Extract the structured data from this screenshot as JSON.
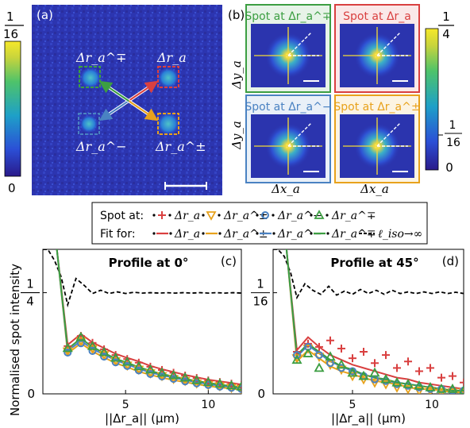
{
  "panel_a": {
    "label": "(a)",
    "colorbar": {
      "top_label": "1/16",
      "top_num": "1",
      "top_den": "16",
      "bottom_label": "0"
    },
    "spot_labels": {
      "tl": "Δr_a^∓",
      "tr": "Δr_a",
      "bl": "Δr_a^−",
      "br": "Δr_a^±"
    },
    "spot_colors": {
      "tr": "#d94040",
      "br": "#e8a21c",
      "bl": "#4a82c2",
      "tl": "#3c9e42"
    }
  },
  "panel_b": {
    "label": "(b)",
    "titles": [
      "Spot at Δr_a^∓",
      "Spot at Δr_a",
      "Spot at Δr_a^−",
      "Spot at Δr_a^±"
    ],
    "title_colors": [
      "#3c9e42",
      "#d94040",
      "#4a82c2",
      "#e8a21c"
    ],
    "ylabel": "Δy_a",
    "xlabel": "Δx_a",
    "colorbar": {
      "top_num": "1",
      "top_den": "4",
      "mid_num": "1",
      "mid_den": "16",
      "bottom_label": "0"
    }
  },
  "legend": {
    "row1_prefix": "Spot at:",
    "row2_prefix": "Fit for:",
    "entries": [
      "Δr_a",
      "Δr_a^±",
      "Δr_a^−",
      "Δr_a^∓"
    ],
    "extra": "ℓ_iso→∞"
  },
  "shared": {
    "ylabel": "Normalised spot intensity"
  },
  "chart_data": [
    {
      "type": "line",
      "panel": "(c)",
      "title": "Profile at 0°",
      "xlabel": "||Δr_a|| (μm)",
      "ylabel": "Normalised spot intensity",
      "xlim": [
        0,
        12
      ],
      "ylim": [
        0,
        0.3571
      ],
      "xticks": [
        5,
        10
      ],
      "yticks": [
        {
          "value": 0,
          "label": "0"
        },
        {
          "value": 0.25,
          "label": "1/4"
        }
      ],
      "x": [
        1.5,
        2.3,
        3.0,
        3.7,
        4.4,
        5.1,
        5.8,
        6.5,
        7.2,
        7.9,
        8.6,
        9.3,
        10.0,
        10.7,
        11.4,
        12.0
      ],
      "series": [
        {
          "name": "Δr_a",
          "color": "#d94040",
          "fit": [
            0.121,
            0.148,
            0.127,
            0.113,
            0.099,
            0.089,
            0.08,
            0.069,
            0.061,
            0.054,
            0.047,
            0.041,
            0.035,
            0.031,
            0.027,
            0.023
          ],
          "points": [
            0.118,
            0.143,
            0.126,
            0.11,
            0.096,
            0.086,
            0.077,
            0.067,
            0.059,
            0.052,
            0.045,
            0.039,
            0.033,
            0.029,
            0.025,
            0.022
          ]
        },
        {
          "name": "Δr_a^±",
          "color": "#e8a21c",
          "fit": [
            0.1,
            0.125,
            0.105,
            0.09,
            0.076,
            0.066,
            0.055,
            0.047,
            0.04,
            0.034,
            0.029,
            0.024,
            0.019,
            0.016,
            0.013,
            0.01
          ],
          "points": [
            0.105,
            0.13,
            0.111,
            0.096,
            0.081,
            0.07,
            0.06,
            0.051,
            0.044,
            0.037,
            0.032,
            0.026,
            0.022,
            0.019,
            0.015,
            0.012
          ]
        },
        {
          "name": "Δr_a^−",
          "color": "#4a82c2",
          "fit": [
            0.106,
            0.131,
            0.111,
            0.097,
            0.083,
            0.073,
            0.062,
            0.053,
            0.046,
            0.04,
            0.034,
            0.029,
            0.024,
            0.02,
            0.017,
            0.014
          ],
          "points": [
            0.102,
            0.125,
            0.106,
            0.092,
            0.078,
            0.069,
            0.058,
            0.049,
            0.043,
            0.037,
            0.031,
            0.026,
            0.022,
            0.018,
            0.015,
            0.012
          ]
        },
        {
          "name": "Δr_a^∓",
          "color": "#3c9e42",
          "fit": [
            0.111,
            0.137,
            0.116,
            0.101,
            0.087,
            0.077,
            0.066,
            0.057,
            0.049,
            0.043,
            0.037,
            0.032,
            0.027,
            0.023,
            0.019,
            0.016
          ],
          "points": [
            0.113,
            0.14,
            0.118,
            0.103,
            0.089,
            0.079,
            0.068,
            0.06,
            0.052,
            0.046,
            0.04,
            0.034,
            0.029,
            0.025,
            0.021,
            0.018
          ]
        }
      ],
      "iso": {
        "name": "ℓ_iso→∞",
        "x": [
          0,
          0.3,
          0.7,
          1.1,
          1.5,
          2.0,
          2.5,
          3.0,
          3.5,
          4.0,
          4.5,
          5.0,
          5.5,
          6.0,
          6.5,
          7.0,
          7.5,
          8.0,
          8.5,
          9.0,
          9.5,
          10.0,
          10.5,
          11.0,
          11.5,
          12.0
        ],
        "y": [
          0.357,
          0.357,
          0.33,
          0.29,
          0.22,
          0.285,
          0.268,
          0.248,
          0.256,
          0.248,
          0.252,
          0.248,
          0.251,
          0.249,
          0.25,
          0.249,
          0.25,
          0.249,
          0.25,
          0.249,
          0.25,
          0.249,
          0.25,
          0.249,
          0.25,
          0.249
        ]
      }
    },
    {
      "type": "line",
      "panel": "(d)",
      "title": "Profile at 45°",
      "xlabel": "||Δr_a|| (μm)",
      "ylabel": "",
      "xlim": [
        0,
        12
      ],
      "ylim": [
        0,
        0.0893
      ],
      "xticks": [
        5,
        10
      ],
      "yticks": [
        {
          "value": 0,
          "label": "0"
        },
        {
          "value": 0.0625,
          "label": "1/16"
        }
      ],
      "x": [
        1.5,
        2.2,
        2.9,
        3.6,
        4.3,
        5.0,
        5.7,
        6.4,
        7.1,
        7.8,
        8.5,
        9.2,
        9.9,
        10.6,
        11.3,
        12.0
      ],
      "series": [
        {
          "name": "Δr_a",
          "color": "#d94040",
          "fit": [
            0.027,
            0.035,
            0.029,
            0.024,
            0.021,
            0.018,
            0.016,
            0.014,
            0.012,
            0.01,
            0.009,
            0.007,
            0.006,
            0.005,
            0.004,
            0.003
          ],
          "points": [
            0.026,
            0.031,
            0.029,
            0.033,
            0.028,
            0.022,
            0.026,
            0.019,
            0.024,
            0.016,
            0.02,
            0.014,
            0.016,
            0.01,
            0.011,
            0.007
          ]
        },
        {
          "name": "Δr_a^±",
          "color": "#e8a21c",
          "fit": [
            0.02,
            0.027,
            0.022,
            0.017,
            0.014,
            0.012,
            0.01,
            0.008,
            0.007,
            0.006,
            0.004,
            0.003,
            0.003,
            0.002,
            0.001,
            0.001
          ],
          "points": [
            0.022,
            0.028,
            0.023,
            0.018,
            0.015,
            0.011,
            0.009,
            0.007,
            0.006,
            0.004,
            0.003,
            0.002,
            0.002,
            0.001,
            0.001,
            0.001
          ]
        },
        {
          "name": "Δr_a^−",
          "color": "#4a82c2",
          "fit": [
            0.023,
            0.03,
            0.025,
            0.02,
            0.017,
            0.014,
            0.012,
            0.01,
            0.008,
            0.007,
            0.006,
            0.005,
            0.004,
            0.003,
            0.002,
            0.002
          ],
          "points": [
            0.024,
            0.029,
            0.024,
            0.019,
            0.016,
            0.014,
            0.011,
            0.009,
            0.008,
            0.006,
            0.005,
            0.004,
            0.003,
            0.003,
            0.002,
            0.002
          ]
        },
        {
          "name": "Δr_a^∓",
          "color": "#3c9e42",
          "fit": [
            0.024,
            0.031,
            0.026,
            0.021,
            0.017,
            0.015,
            0.012,
            0.01,
            0.009,
            0.007,
            0.006,
            0.005,
            0.004,
            0.003,
            0.002,
            0.002
          ],
          "points": [
            0.021,
            0.025,
            0.016,
            0.023,
            0.018,
            0.013,
            0.011,
            0.013,
            0.009,
            0.007,
            0.006,
            0.005,
            0.004,
            0.003,
            0.003,
            0.002
          ]
        }
      ],
      "iso": {
        "name": "ℓ_iso→∞",
        "x": [
          0,
          0.3,
          0.7,
          1.1,
          1.5,
          2.0,
          2.5,
          3.0,
          3.5,
          4.0,
          4.5,
          5.0,
          5.5,
          6.0,
          6.5,
          7.0,
          7.5,
          8.0,
          8.5,
          9.0,
          9.5,
          10.0,
          10.5,
          11.0,
          11.5,
          12.0
        ],
        "y": [
          0.0893,
          0.0893,
          0.085,
          0.075,
          0.0595,
          0.068,
          0.064,
          0.0615,
          0.0665,
          0.061,
          0.0635,
          0.0615,
          0.0645,
          0.062,
          0.064,
          0.0615,
          0.064,
          0.062,
          0.063,
          0.062,
          0.063,
          0.062,
          0.063,
          0.062,
          0.0628,
          0.062
        ]
      }
    }
  ]
}
